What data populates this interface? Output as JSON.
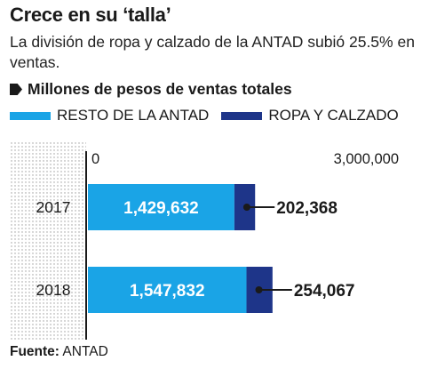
{
  "title": "Crece en su ‘talla’",
  "subtitle": "La división de ropa y calzado de la ANTAD subió 25.5% en ventas.",
  "measure_label": "Millones de pesos de ventas totales",
  "source_label": "Fuente:",
  "source_value": "ANTAD",
  "colors": {
    "resto": "#1aa4e6",
    "ropa": "#1e3589",
    "text": "#1a1a1a"
  },
  "chart_data": {
    "type": "bar",
    "orientation": "horizontal",
    "stacked": true,
    "categories": [
      "2017",
      "2018"
    ],
    "series": [
      {
        "name": "RESTO DE LA ANTAD",
        "values": [
          1429632,
          1547832
        ]
      },
      {
        "name": "ROPA Y CALZADO",
        "values": [
          202368,
          254067
        ]
      }
    ],
    "xlim": [
      0,
      3000000
    ],
    "x_tick_labels": [
      "0",
      "3,000,000"
    ],
    "inner_labels": [
      "1,429,632",
      "1,547,832"
    ],
    "callout_labels": [
      "202,368",
      "254,067"
    ],
    "legend_position": "top"
  }
}
